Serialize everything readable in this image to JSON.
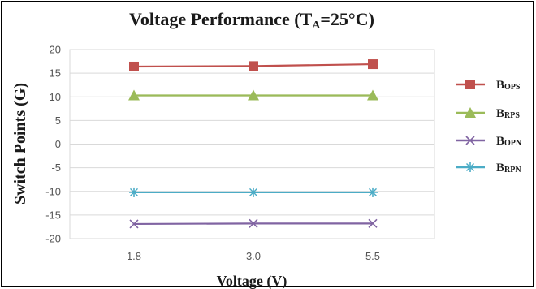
{
  "chart_data": {
    "type": "line",
    "title": {
      "main": "Voltage Performance (T",
      "sub": "A",
      "rest": "=25°C)"
    },
    "xlabel": "Voltage (V)",
    "ylabel": "Switch Points (G)",
    "categories": [
      "1.8",
      "3.0",
      "5.5"
    ],
    "ylim": [
      -20,
      20
    ],
    "yticks": [
      "20",
      "15",
      "10",
      "5",
      "0",
      "-5",
      "-10",
      "-15",
      "-20"
    ],
    "grid": true,
    "legend_position": "right",
    "series": [
      {
        "name_main": "B",
        "name_sub": "OPS",
        "values": [
          16.4,
          16.5,
          16.9
        ],
        "color": "#c0504d",
        "marker": "square"
      },
      {
        "name_main": "B",
        "name_sub": "RPS",
        "values": [
          10.3,
          10.3,
          10.3
        ],
        "color": "#9bbb59",
        "marker": "triangle"
      },
      {
        "name_main": "B",
        "name_sub": "OPN",
        "values": [
          -16.9,
          -16.8,
          -16.8
        ],
        "color": "#8064a2",
        "marker": "x"
      },
      {
        "name_main": "B",
        "name_sub": "RPN",
        "values": [
          -10.2,
          -10.2,
          -10.2
        ],
        "color": "#4bacc6",
        "marker": "star"
      }
    ]
  }
}
